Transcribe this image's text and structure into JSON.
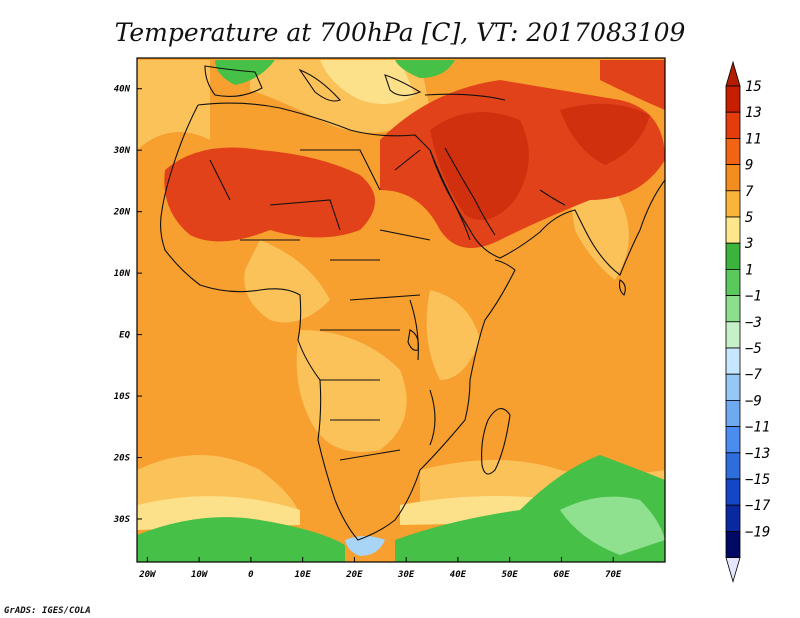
{
  "map": {
    "title": "Temperature at 700hPa [C], VT: 2017083109",
    "footer": "GrADS: IGES/COLA",
    "lon_ticks": [
      {
        "label": "20W",
        "lon": -20
      },
      {
        "label": "10W",
        "lon": -10
      },
      {
        "label": "0",
        "lon": 0
      },
      {
        "label": "10E",
        "lon": 10
      },
      {
        "label": "20E",
        "lon": 20
      },
      {
        "label": "30E",
        "lon": 30
      },
      {
        "label": "40E",
        "lon": 40
      },
      {
        "label": "50E",
        "lon": 50
      },
      {
        "label": "60E",
        "lon": 60
      },
      {
        "label": "70E",
        "lon": 70
      }
    ],
    "lat_ticks": [
      {
        "label": "40N",
        "lat": 40
      },
      {
        "label": "30N",
        "lat": 30
      },
      {
        "label": "20N",
        "lat": 20
      },
      {
        "label": "10N",
        "lat": 10
      },
      {
        "label": "EQ",
        "lat": 0
      },
      {
        "label": "10S",
        "lat": -10
      },
      {
        "label": "20S",
        "lat": -20
      },
      {
        "label": "30S",
        "lat": -30
      }
    ]
  },
  "colorbar": {
    "labels": [
      "15",
      "13",
      "11",
      "9",
      "7",
      "5",
      "3",
      "1",
      "−1",
      "−3",
      "−5",
      "−7",
      "−9",
      "−11",
      "−13",
      "−15",
      "−17",
      "−19"
    ],
    "colors": [
      "#c81e00",
      "#e43c0a",
      "#f06414",
      "#f58c1e",
      "#fab43c",
      "#fde68c",
      "#3cb43c",
      "#5ac85a",
      "#8ce08c",
      "#c8f0c8",
      "#c8e6ff",
      "#96c8f5",
      "#6eaaf0",
      "#4b8cf0",
      "#2d6edc",
      "#1446c8",
      "#0a28a0",
      "#000a64"
    ],
    "top_arrow_color": "#b41e00",
    "bottom_arrow_color": "#e6e6ff"
  },
  "fields": {
    "ocean_color": "#f7a030",
    "warm_core_color": "#e2421a",
    "hot_core_color": "#d1300f",
    "mild_color": "#fbc25a",
    "pale_color": "#fde08a",
    "green_color": "#46c046",
    "light_green_color": "#8fe08f",
    "cold_color": "#a8d4f5"
  }
}
